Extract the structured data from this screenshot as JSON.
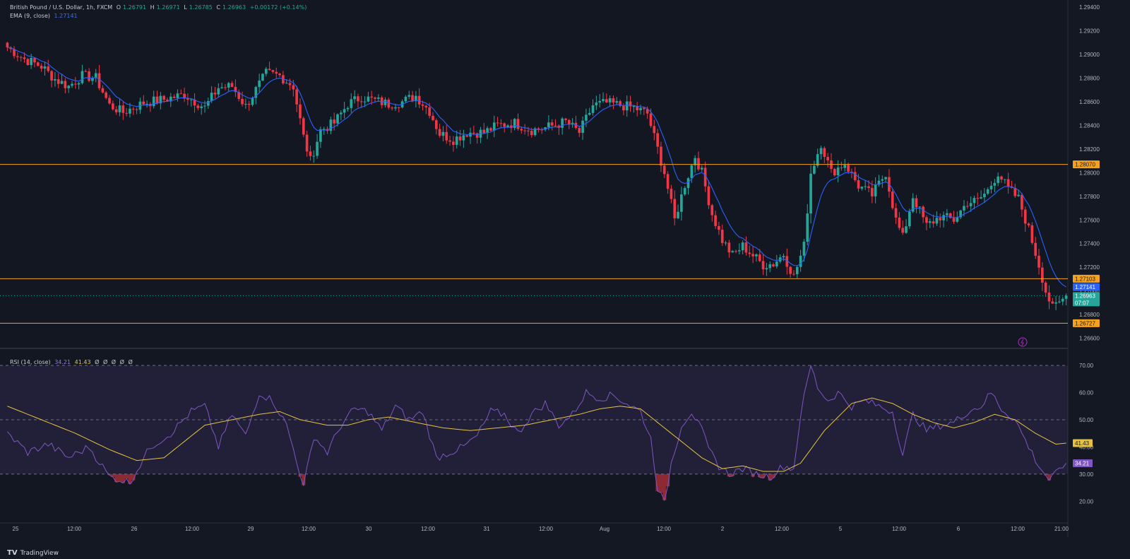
{
  "legend": {
    "symbol": "British Pound / U.S. Dollar, 1h, FXCM",
    "o_label": "O",
    "o_value": "1.26791",
    "h_label": "H",
    "h_value": "1.26971",
    "l_label": "L",
    "l_value": "1.26785",
    "c_label": "C",
    "c_value": "1.26963",
    "change": "+0.00172 (+0.14%)",
    "ema_label": "EMA (9, close)",
    "ema_value": "1.27141",
    "rsi_label": "RSI (14, close)",
    "rsi_value": "34.21",
    "rsi_ma_value": "41.43",
    "rsi_extra": [
      "Ø",
      "Ø",
      "Ø",
      "Ø",
      "Ø"
    ]
  },
  "price_axis": {
    "ticks": [
      "1.29400",
      "1.29200",
      "1.29000",
      "1.28800",
      "1.28600",
      "1.28400",
      "1.28200",
      "1.28000",
      "1.27800",
      "1.27600",
      "1.27400",
      "1.27200",
      "1.27000",
      "1.26800",
      "1.26600"
    ],
    "tick_values": [
      1.294,
      1.292,
      1.29,
      1.288,
      1.286,
      1.284,
      1.282,
      1.28,
      1.278,
      1.276,
      1.274,
      1.272,
      1.27,
      1.268,
      1.266
    ],
    "ema_badge": "1.27141",
    "level_badges": [
      "1.28070",
      "1.27103",
      "1.26727"
    ],
    "price_badge": "1.26963",
    "countdown": "07:07"
  },
  "rsi_axis": {
    "ticks": [
      "70.00",
      "60.00",
      "50.00",
      "40.00",
      "30.00",
      "20.00"
    ],
    "tick_values": [
      70,
      60,
      50,
      40,
      30,
      20
    ],
    "rsi_badge": "34.21",
    "ma_badge": "41.43"
  },
  "time_axis": {
    "labels": [
      "25",
      "12:00",
      "26",
      "12:00",
      "29",
      "12:00",
      "30",
      "12:00",
      "31",
      "12:00",
      "Aug",
      "12:00",
      "2",
      "12:00",
      "5",
      "12:00",
      "6",
      "12:00",
      "21:00"
    ]
  },
  "brand": "TradingView",
  "colors": {
    "up": "#26a69a",
    "down": "#f23645",
    "ema": "#2962ff",
    "rsi": "#7e57c2",
    "rsi_ma": "#e5c33f",
    "level": "#f7a21b"
  },
  "chart_data": {
    "type": "candlestick",
    "title": "British Pound / U.S. Dollar, 1h, FXCM",
    "ylim": [
      1.2652,
      1.2946
    ],
    "horizontal_levels": [
      1.2807,
      1.27103,
      1.26727
    ],
    "anchors_close": [
      [
        0,
        1.2906
      ],
      [
        5,
        1.2896
      ],
      [
        10,
        1.289
      ],
      [
        14,
        1.2879
      ],
      [
        18,
        1.2873
      ],
      [
        22,
        1.2882
      ],
      [
        26,
        1.288
      ],
      [
        30,
        1.2857
      ],
      [
        34,
        1.2851
      ],
      [
        40,
        1.2859
      ],
      [
        46,
        1.2862
      ],
      [
        52,
        1.2866
      ],
      [
        58,
        1.2855
      ],
      [
        62,
        1.2872
      ],
      [
        66,
        1.2873
      ],
      [
        70,
        1.2856
      ],
      [
        76,
        1.2884
      ],
      [
        80,
        1.2882
      ],
      [
        84,
        1.2873
      ],
      [
        87,
        1.283
      ],
      [
        89,
        1.281
      ],
      [
        92,
        1.2836
      ],
      [
        96,
        1.2842
      ],
      [
        100,
        1.2858
      ],
      [
        104,
        1.2864
      ],
      [
        108,
        1.2861
      ],
      [
        112,
        1.2858
      ],
      [
        116,
        1.286
      ],
      [
        120,
        1.2865
      ],
      [
        124,
        1.2852
      ],
      [
        127,
        1.2833
      ],
      [
        131,
        1.2828
      ],
      [
        135,
        1.2834
      ],
      [
        140,
        1.2834
      ],
      [
        144,
        1.284
      ],
      [
        149,
        1.2842
      ],
      [
        154,
        1.2836
      ],
      [
        158,
        1.2838
      ],
      [
        164,
        1.2843
      ],
      [
        168,
        1.2834
      ],
      [
        172,
        1.2857
      ],
      [
        176,
        1.2859
      ],
      [
        180,
        1.2857
      ],
      [
        184,
        1.2855
      ],
      [
        188,
        1.285
      ],
      [
        190,
        1.283
      ],
      [
        193,
        1.28
      ],
      [
        196,
        1.276
      ],
      [
        199,
        1.279
      ],
      [
        202,
        1.2814
      ],
      [
        204,
        1.28
      ],
      [
        207,
        1.2765
      ],
      [
        210,
        1.2743
      ],
      [
        213,
        1.273
      ],
      [
        216,
        1.2738
      ],
      [
        219,
        1.273
      ],
      [
        222,
        1.2722
      ],
      [
        225,
        1.2723
      ],
      [
        228,
        1.2731
      ],
      [
        231,
        1.2712
      ],
      [
        234,
        1.2738
      ],
      [
        236,
        1.28
      ],
      [
        239,
        1.2825
      ],
      [
        242,
        1.28
      ],
      [
        246,
        1.2808
      ],
      [
        250,
        1.2789
      ],
      [
        254,
        1.2781
      ],
      [
        258,
        1.28
      ],
      [
        261,
        1.276
      ],
      [
        263,
        1.2745
      ],
      [
        266,
        1.278
      ],
      [
        270,
        1.2755
      ],
      [
        274,
        1.2763
      ],
      [
        278,
        1.276
      ],
      [
        282,
        1.2775
      ],
      [
        285,
        1.2776
      ],
      [
        288,
        1.2785
      ],
      [
        291,
        1.28
      ],
      [
        294,
        1.2786
      ],
      [
        297,
        1.2778
      ],
      [
        300,
        1.2752
      ],
      [
        303,
        1.2722
      ],
      [
        305,
        1.27
      ],
      [
        307,
        1.2685
      ],
      [
        309,
        1.269
      ],
      [
        311,
        1.2696
      ]
    ],
    "ema_period": 9,
    "rsi_anchors": [
      [
        0,
        45
      ],
      [
        6,
        38
      ],
      [
        12,
        41
      ],
      [
        18,
        36
      ],
      [
        24,
        40
      ],
      [
        30,
        29
      ],
      [
        36,
        27
      ],
      [
        42,
        40
      ],
      [
        48,
        45
      ],
      [
        54,
        53
      ],
      [
        58,
        55
      ],
      [
        62,
        40
      ],
      [
        66,
        52
      ],
      [
        70,
        44
      ],
      [
        74,
        60
      ],
      [
        78,
        57
      ],
      [
        82,
        48
      ],
      [
        85,
        35
      ],
      [
        87,
        25
      ],
      [
        90,
        44
      ],
      [
        94,
        38
      ],
      [
        98,
        48
      ],
      [
        102,
        54
      ],
      [
        106,
        53
      ],
      [
        110,
        46
      ],
      [
        114,
        55
      ],
      [
        118,
        50
      ],
      [
        122,
        53
      ],
      [
        126,
        36
      ],
      [
        130,
        38
      ],
      [
        134,
        40
      ],
      [
        138,
        44
      ],
      [
        142,
        53
      ],
      [
        146,
        52
      ],
      [
        150,
        45
      ],
      [
        154,
        52
      ],
      [
        158,
        56
      ],
      [
        162,
        48
      ],
      [
        166,
        52
      ],
      [
        170,
        60
      ],
      [
        174,
        58
      ],
      [
        178,
        59
      ],
      [
        182,
        56
      ],
      [
        186,
        53
      ],
      [
        189,
        43
      ],
      [
        191,
        25
      ],
      [
        193,
        19
      ],
      [
        195,
        34
      ],
      [
        198,
        48
      ],
      [
        201,
        53
      ],
      [
        204,
        46
      ],
      [
        206,
        39
      ],
      [
        209,
        33
      ],
      [
        212,
        30
      ],
      [
        216,
        32
      ],
      [
        220,
        30
      ],
      [
        224,
        29
      ],
      [
        228,
        33
      ],
      [
        231,
        32
      ],
      [
        233,
        52
      ],
      [
        236,
        70
      ],
      [
        238,
        62
      ],
      [
        241,
        57
      ],
      [
        244,
        60
      ],
      [
        248,
        55
      ],
      [
        252,
        57
      ],
      [
        256,
        55
      ],
      [
        260,
        53
      ],
      [
        263,
        37
      ],
      [
        266,
        52
      ],
      [
        270,
        46
      ],
      [
        274,
        48
      ],
      [
        278,
        49
      ],
      [
        282,
        53
      ],
      [
        286,
        55
      ],
      [
        289,
        60
      ],
      [
        292,
        54
      ],
      [
        296,
        50
      ],
      [
        300,
        40
      ],
      [
        303,
        33
      ],
      [
        306,
        28
      ],
      [
        308,
        30
      ],
      [
        311,
        34
      ]
    ],
    "rsi_ma_anchors": [
      [
        0,
        55
      ],
      [
        10,
        50
      ],
      [
        20,
        45
      ],
      [
        30,
        39
      ],
      [
        38,
        35
      ],
      [
        46,
        36
      ],
      [
        52,
        42
      ],
      [
        58,
        48
      ],
      [
        66,
        50
      ],
      [
        74,
        52
      ],
      [
        80,
        53
      ],
      [
        86,
        50
      ],
      [
        94,
        48
      ],
      [
        100,
        48
      ],
      [
        106,
        50
      ],
      [
        112,
        51
      ],
      [
        120,
        49
      ],
      [
        128,
        47
      ],
      [
        136,
        46
      ],
      [
        144,
        47
      ],
      [
        152,
        48
      ],
      [
        160,
        50
      ],
      [
        168,
        52
      ],
      [
        174,
        54
      ],
      [
        180,
        55
      ],
      [
        186,
        54
      ],
      [
        192,
        48
      ],
      [
        198,
        42
      ],
      [
        204,
        36
      ],
      [
        210,
        32
      ],
      [
        216,
        33
      ],
      [
        222,
        31
      ],
      [
        228,
        31
      ],
      [
        233,
        34
      ],
      [
        240,
        46
      ],
      [
        248,
        56
      ],
      [
        254,
        58
      ],
      [
        260,
        56
      ],
      [
        266,
        52
      ],
      [
        272,
        49
      ],
      [
        278,
        47
      ],
      [
        284,
        49
      ],
      [
        290,
        52
      ],
      [
        296,
        50
      ],
      [
        302,
        45
      ],
      [
        308,
        41
      ],
      [
        311,
        41.4
      ]
    ]
  }
}
